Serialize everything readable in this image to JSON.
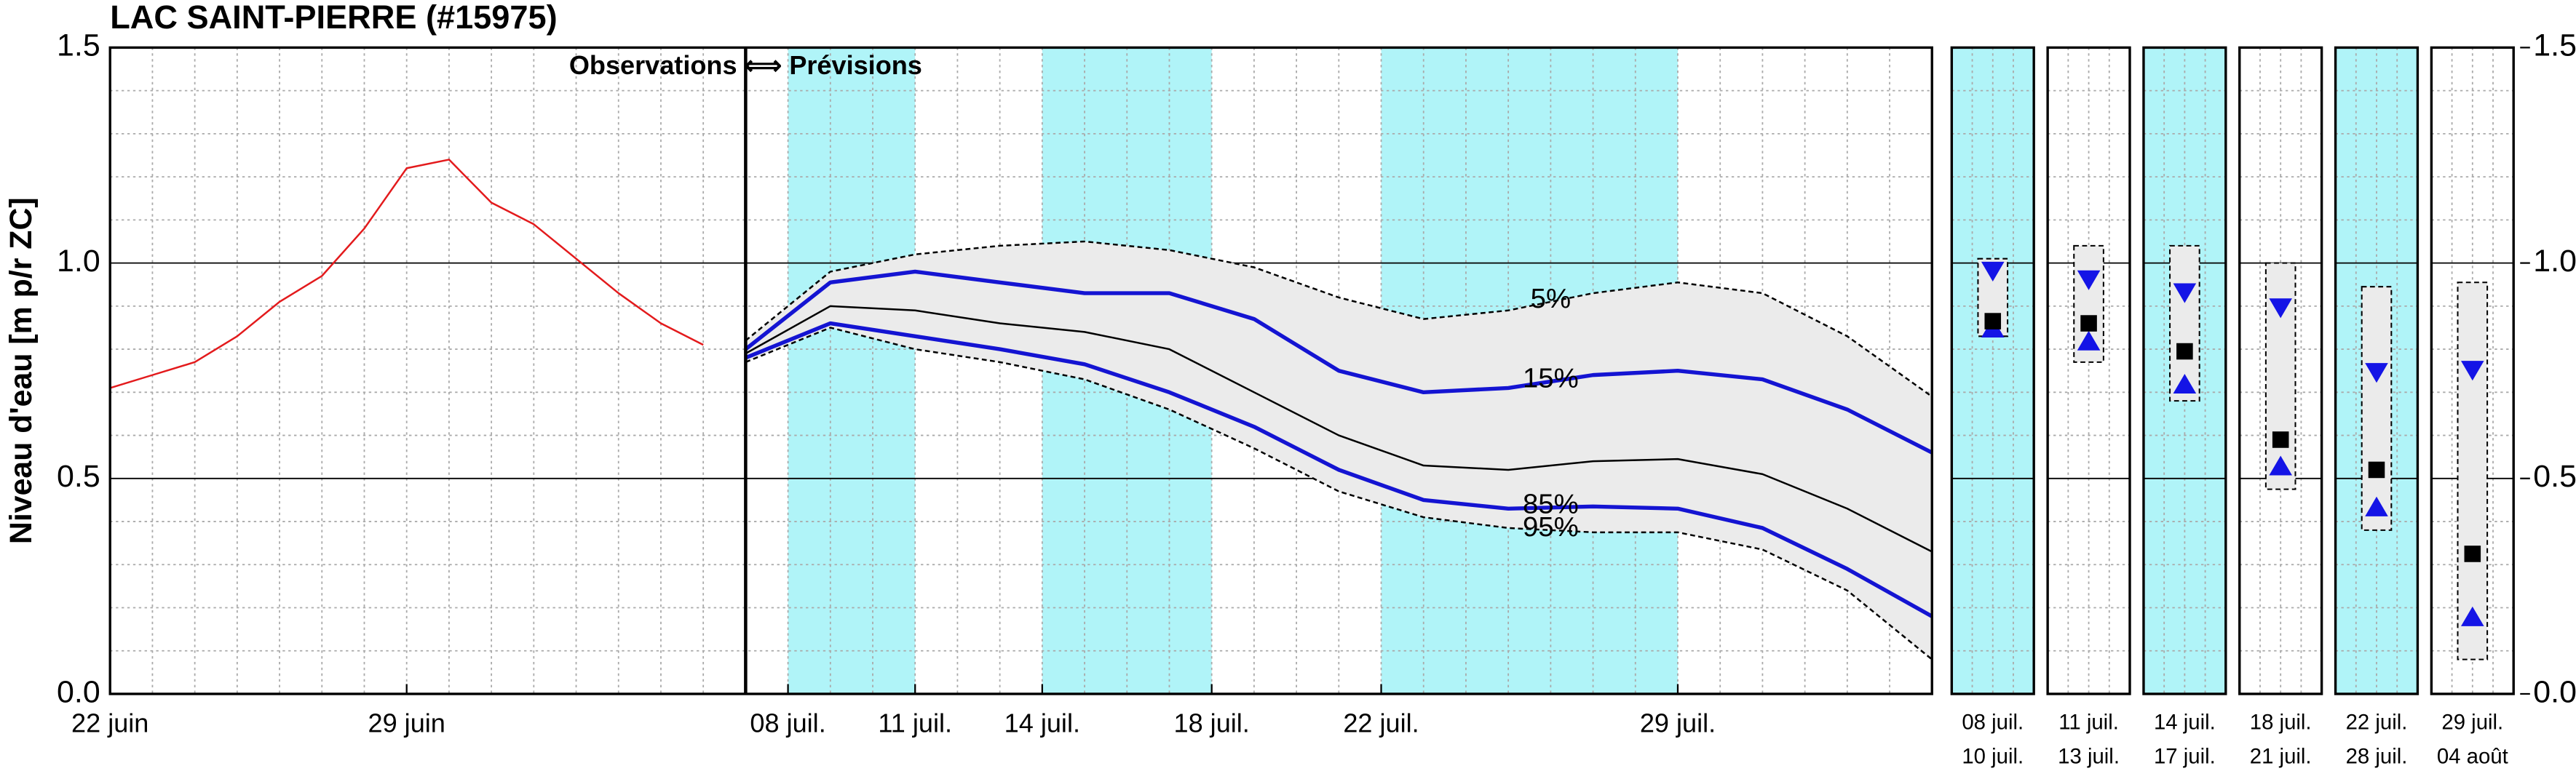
{
  "chart_data": [
    {
      "type": "line",
      "title": "LAC SAINT-PIERRE (#15975)",
      "ylabel": "Niveau d'eau [m p/r ZC]",
      "annotation": "Observations ⟺ Prévisions",
      "divider": "07-07",
      "xlim": [
        "06-22",
        "08-04"
      ],
      "xticks": [
        {
          "value": "06-22",
          "label": "22 juin"
        },
        {
          "value": "06-29",
          "label": "29 juin"
        },
        {
          "value": "07-08",
          "label": "08 juil."
        },
        {
          "value": "07-11",
          "label": "11 juil."
        },
        {
          "value": "07-14",
          "label": "14 juil."
        },
        {
          "value": "07-18",
          "label": "18 juil."
        },
        {
          "value": "07-22",
          "label": "22 juil."
        },
        {
          "value": "07-29",
          "label": "29 juil."
        }
      ],
      "ylim": [
        0,
        1.5
      ],
      "yticks": [
        {
          "value": 0,
          "label": "0.0"
        },
        {
          "value": 0.5,
          "label": "0.5"
        },
        {
          "value": 1,
          "label": "1.0"
        },
        {
          "value": 1.5,
          "label": "1.5"
        }
      ],
      "minor_yticks": [
        0.1,
        0.2,
        0.3,
        0.4,
        0.6,
        0.7,
        0.8,
        0.9,
        1.1,
        1.2,
        1.3,
        1.4
      ],
      "grid": true,
      "shaded": {
        "color": "#b0f4f8",
        "ranges": [
          [
            "07-08",
            "07-11"
          ],
          [
            "07-14",
            "07-18"
          ],
          [
            "07-22",
            "07-29"
          ]
        ]
      },
      "band_color": "#ebebeb",
      "series": [
        {
          "color": "#e31a1c",
          "style": "solid",
          "x": [
            "06-22",
            "06-23",
            "06-24",
            "06-25",
            "06-26",
            "06-27",
            "06-28",
            "06-29",
            "06-30",
            "07-01",
            "07-02",
            "07-03",
            "07-04",
            "07-05",
            "07-06"
          ],
          "values": [
            0.71,
            0.74,
            0.77,
            0.83,
            0.91,
            0.97,
            1.08,
            1.22,
            1.24,
            1.14,
            1.09,
            1.01,
            0.93,
            0.86,
            0.81
          ]
        },
        {
          "name": "5%",
          "color": "#000000",
          "style": "dashed",
          "x": [
            "07-07",
            "07-09",
            "07-11",
            "07-13",
            "07-15",
            "07-17",
            "07-19",
            "07-21",
            "07-23",
            "07-25",
            "07-27",
            "07-29",
            "07-31",
            "08-02",
            "08-04"
          ],
          "values": [
            0.82,
            0.98,
            1.02,
            1.04,
            1.05,
            1.03,
            0.99,
            0.92,
            0.87,
            0.89,
            0.93,
            0.955,
            0.93,
            0.83,
            0.69
          ]
        },
        {
          "name": "15%",
          "color": "#1414d2",
          "style": "bold",
          "x": [
            "07-07",
            "07-09",
            "07-11",
            "07-13",
            "07-15",
            "07-17",
            "07-19",
            "07-21",
            "07-23",
            "07-25",
            "07-27",
            "07-29",
            "07-31",
            "08-02",
            "08-04"
          ],
          "values": [
            0.8,
            0.955,
            0.98,
            0.955,
            0.93,
            0.93,
            0.87,
            0.75,
            0.7,
            0.71,
            0.74,
            0.75,
            0.73,
            0.66,
            0.56
          ]
        },
        {
          "color": "#000000",
          "style": "solid",
          "x": [
            "07-07",
            "07-09",
            "07-11",
            "07-13",
            "07-15",
            "07-17",
            "07-19",
            "07-21",
            "07-23",
            "07-25",
            "07-27",
            "07-29",
            "07-31",
            "08-02",
            "08-04"
          ],
          "values": [
            0.79,
            0.9,
            0.89,
            0.86,
            0.84,
            0.8,
            0.7,
            0.6,
            0.53,
            0.52,
            0.54,
            0.545,
            0.51,
            0.43,
            0.33
          ]
        },
        {
          "name": "85%",
          "color": "#1414d2",
          "style": "bold",
          "x": [
            "07-07",
            "07-09",
            "07-11",
            "07-13",
            "07-15",
            "07-17",
            "07-19",
            "07-21",
            "07-23",
            "07-25",
            "07-27",
            "07-29",
            "07-31",
            "08-02",
            "08-04"
          ],
          "values": [
            0.78,
            0.86,
            0.83,
            0.8,
            0.765,
            0.7,
            0.62,
            0.52,
            0.45,
            0.43,
            0.435,
            0.43,
            0.385,
            0.29,
            0.18
          ]
        },
        {
          "name": "95%",
          "color": "#000000",
          "style": "dashed",
          "x": [
            "07-07",
            "07-09",
            "07-11",
            "07-13",
            "07-15",
            "07-17",
            "07-19",
            "07-21",
            "07-23",
            "07-25",
            "07-27",
            "07-29",
            "07-31",
            "08-02",
            "08-04"
          ],
          "values": [
            0.77,
            0.85,
            0.8,
            0.77,
            0.73,
            0.66,
            0.57,
            0.47,
            0.41,
            0.385,
            0.375,
            0.375,
            0.335,
            0.24,
            0.08
          ]
        }
      ]
    },
    {
      "type": "range",
      "categories": [
        [
          "08 juil.",
          "10 juil."
        ],
        [
          "11 juil.",
          "13 juil."
        ],
        [
          "14 juil.",
          "17 juil."
        ],
        [
          "18 juil.",
          "21 juil."
        ],
        [
          "22 juil.",
          "28 juil."
        ],
        [
          "29 juil.",
          "04 août"
        ]
      ],
      "highlight": [
        true,
        false,
        true,
        false,
        true,
        false
      ],
      "highlight_color": "#b0f4f8",
      "ylim": [
        0,
        1.5
      ],
      "yticks": [
        {
          "value": 0,
          "label": "0.0"
        },
        {
          "value": 0.5,
          "label": "0.5"
        },
        {
          "value": 1,
          "label": "1.0"
        },
        {
          "value": 1.5,
          "label": "1.5"
        }
      ],
      "minor_yticks": [
        0.1,
        0.2,
        0.3,
        0.4,
        0.6,
        0.7,
        0.8,
        0.9,
        1.1,
        1.2,
        1.3,
        1.4
      ],
      "box_color": "#ebebeb",
      "triangle_color": "#1414e6",
      "median_color": "#000000",
      "q5": [
        1.01,
        1.04,
        1.04,
        1.0,
        0.945,
        0.955
      ],
      "q15": [
        0.98,
        0.96,
        0.93,
        0.895,
        0.745,
        0.75
      ],
      "q50": [
        0.865,
        0.86,
        0.795,
        0.59,
        0.52,
        0.325
      ],
      "q85": [
        0.85,
        0.82,
        0.72,
        0.53,
        0.435,
        0.18
      ],
      "q95": [
        0.83,
        0.77,
        0.68,
        0.475,
        0.38,
        0.08
      ]
    }
  ]
}
